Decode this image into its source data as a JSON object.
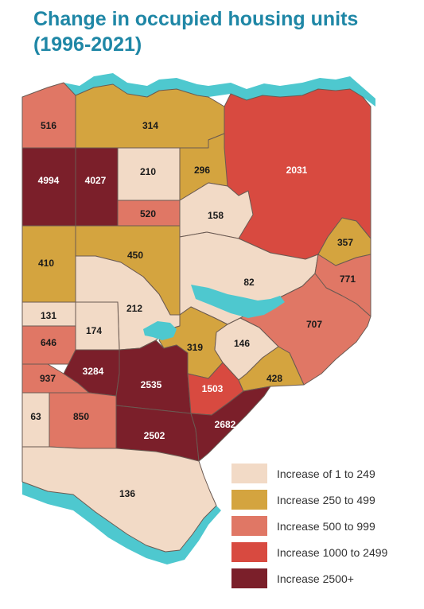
{
  "title": {
    "line1": "Change in occupied housing units",
    "line2": "(1996-2021)"
  },
  "colors": {
    "water": "#4ec8cf",
    "border": "#6b5a52",
    "class1": "#f2dac6",
    "class2": "#d4a43f",
    "class3": "#e07765",
    "class4": "#d84a40",
    "class5": "#7b1f2a"
  },
  "legend": [
    {
      "label": "Increase of 1 to 249",
      "class": "class1"
    },
    {
      "label": "Increase 250 to 499",
      "class": "class2"
    },
    {
      "label": "Increase 500 to 999",
      "class": "class3"
    },
    {
      "label": "Increase 1000 to 2499",
      "class": "class4"
    },
    {
      "label": "Increase 2500+",
      "class": "class5"
    }
  ],
  "regions": [
    {
      "value": "516",
      "class": "class3"
    },
    {
      "value": "314",
      "class": "class2"
    },
    {
      "value": "2031",
      "class": "class4"
    },
    {
      "value": "4994",
      "class": "class5"
    },
    {
      "value": "4027",
      "class": "class5"
    },
    {
      "value": "210",
      "class": "class1"
    },
    {
      "value": "296",
      "class": "class2"
    },
    {
      "value": "520",
      "class": "class3"
    },
    {
      "value": "158",
      "class": "class1"
    },
    {
      "value": "357",
      "class": "class2"
    },
    {
      "value": "410",
      "class": "class2"
    },
    {
      "value": "450",
      "class": "class2"
    },
    {
      "value": "82",
      "class": "class1"
    },
    {
      "value": "771",
      "class": "class3"
    },
    {
      "value": "212",
      "class": "class1"
    },
    {
      "value": "131",
      "class": "class1"
    },
    {
      "value": "174",
      "class": "class1"
    },
    {
      "value": "707",
      "class": "class3"
    },
    {
      "value": "646",
      "class": "class3"
    },
    {
      "value": "319",
      "class": "class2"
    },
    {
      "value": "146",
      "class": "class1"
    },
    {
      "value": "937",
      "class": "class3"
    },
    {
      "value": "3284",
      "class": "class5"
    },
    {
      "value": "2535",
      "class": "class5"
    },
    {
      "value": "1503",
      "class": "class4"
    },
    {
      "value": "428",
      "class": "class2"
    },
    {
      "value": "63",
      "class": "class1"
    },
    {
      "value": "850",
      "class": "class3"
    },
    {
      "value": "2502",
      "class": "class5"
    },
    {
      "value": "2682",
      "class": "class5"
    },
    {
      "value": "136",
      "class": "class1"
    }
  ]
}
